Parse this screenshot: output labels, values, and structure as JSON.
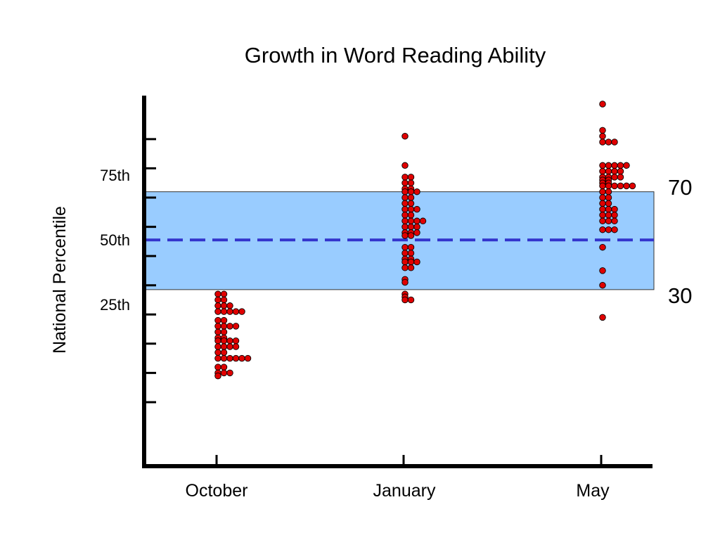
{
  "chart_data": {
    "type": "scatter",
    "title": "Growth in Word Reading Ability",
    "xlabel": "",
    "ylabel": "National Percentile",
    "categories": [
      "October",
      "January",
      "May"
    ],
    "ylim": [
      -3,
      112
    ],
    "y_tick_positions": [
      10,
      20,
      30,
      40,
      50,
      60,
      70,
      80,
      90,
      100
    ],
    "y_tick_labels": [
      {
        "value": 30,
        "text": "25th"
      },
      {
        "value": 50,
        "text": "50th"
      },
      {
        "value": 70,
        "text": "75th"
      }
    ],
    "band": {
      "low": 48.5,
      "high": 82,
      "low_label": "30",
      "high_label": "70",
      "color": "#99ccff"
    },
    "reference_line": {
      "value": 65.5,
      "style": "dashed",
      "color": "#3333cc"
    },
    "marker_color": "#e00000",
    "grid": false,
    "legend": "none",
    "series": [
      {
        "category": "October",
        "values": [
          47,
          47,
          45,
          45,
          43,
          43,
          43,
          41,
          41,
          41,
          41,
          41,
          38,
          38,
          36,
          36,
          36,
          36,
          34,
          34,
          32,
          32,
          31,
          31,
          31,
          31,
          29,
          29,
          29,
          29,
          27,
          27,
          25,
          25,
          25,
          25,
          25,
          25,
          22,
          22,
          20,
          20,
          20,
          19
        ]
      },
      {
        "category": "January",
        "values": [
          101,
          91,
          87,
          87,
          85,
          85,
          83,
          83,
          82,
          82,
          82,
          80,
          80,
          78,
          78,
          76,
          76,
          76,
          74,
          74,
          72,
          72,
          72,
          72,
          70,
          70,
          70,
          68,
          68,
          68,
          67,
          67,
          63,
          63,
          61,
          61,
          59,
          59,
          58,
          58,
          58,
          56,
          56,
          52,
          51,
          47,
          46,
          45,
          45
        ]
      },
      {
        "category": "May",
        "values": [
          112,
          103,
          101,
          99,
          99,
          99,
          91,
          91,
          91,
          91,
          91,
          89,
          89,
          89,
          89,
          87,
          87,
          87,
          87,
          86,
          86,
          85,
          85,
          84,
          84,
          84,
          84,
          84,
          84,
          82,
          82,
          80,
          80,
          78,
          78,
          76,
          76,
          76,
          74,
          74,
          74,
          72,
          72,
          72,
          69,
          69,
          63,
          55,
          50,
          39,
          69
        ]
      }
    ]
  }
}
